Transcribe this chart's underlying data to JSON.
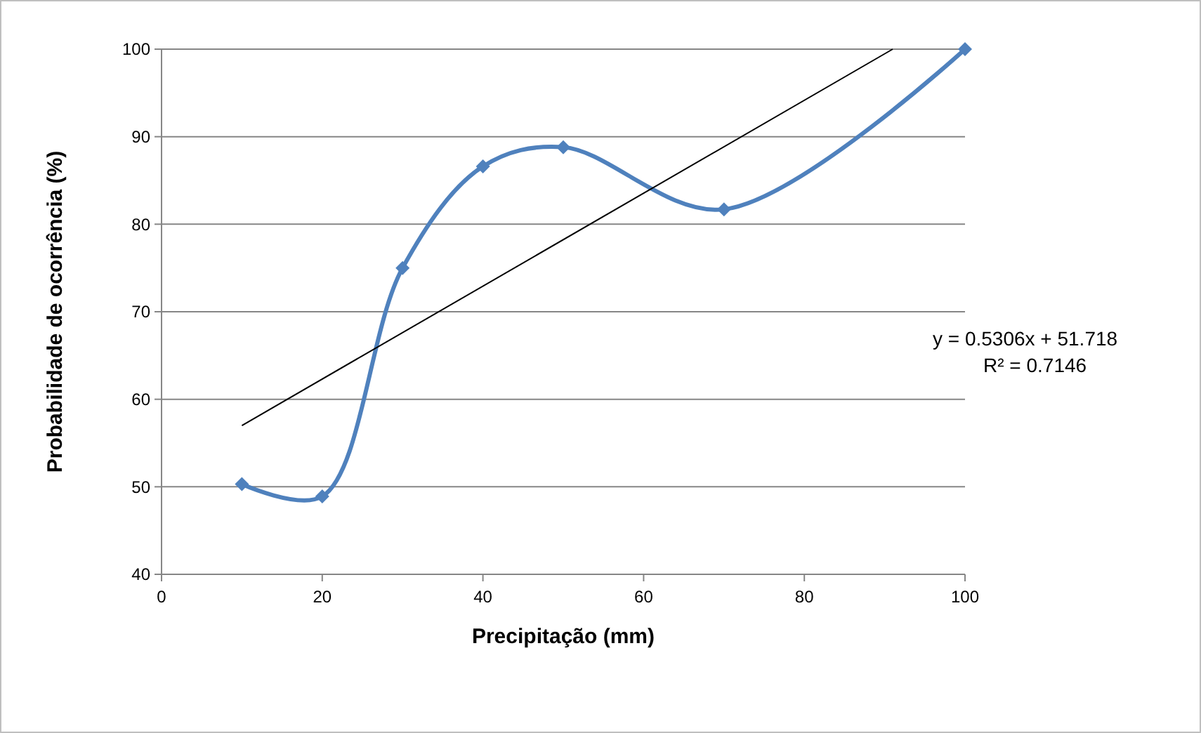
{
  "chart_data": {
    "type": "line",
    "xlabel": "Precipitação (mm)",
    "ylabel": "Probabilidade de ocorrência (%)",
    "x": [
      10,
      20,
      30,
      40,
      50,
      70,
      100
    ],
    "series": [
      {
        "color": "#4f81bd",
        "values": [
          50.3,
          48.9,
          75,
          86.6,
          88.8,
          81.7,
          100
        ],
        "marker": "diamond"
      },
      {
        "type": "line",
        "color": "#000000",
        "x": [
          10,
          91
        ],
        "values": [
          57.0,
          100.0
        ],
        "marker": "none"
      }
    ],
    "xlim": [
      0,
      100
    ],
    "xticks": [
      0,
      20,
      40,
      60,
      80,
      100
    ],
    "ylim": [
      40,
      100
    ],
    "yticks": [
      40,
      50,
      60,
      70,
      80,
      90,
      100
    ],
    "grid": "y",
    "annotations": [
      "y = 0.5306x + 51.718",
      "R² = 0.7146"
    ]
  }
}
